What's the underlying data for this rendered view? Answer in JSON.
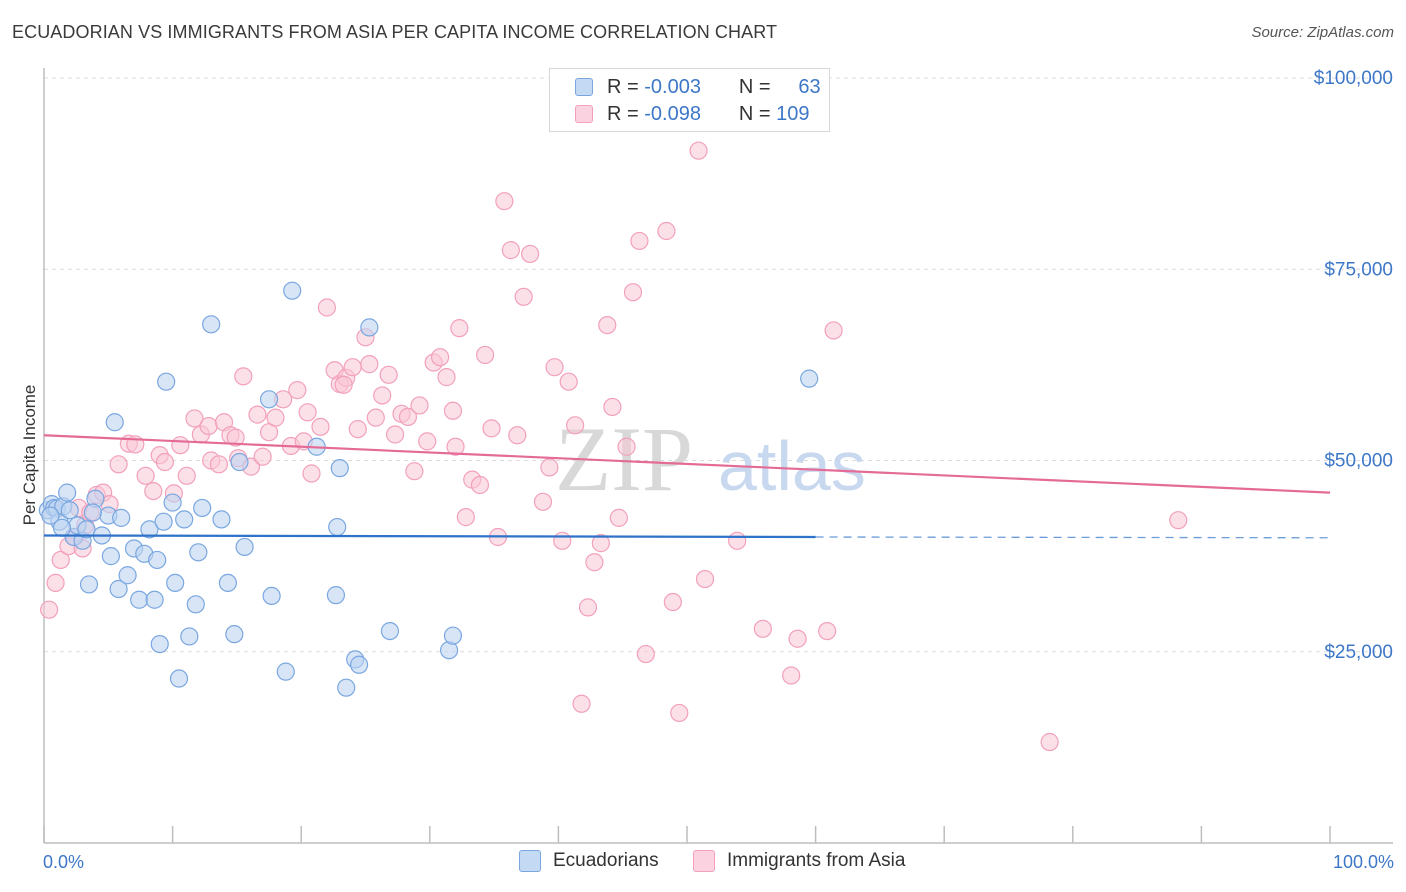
{
  "title": "ECUADORIAN VS IMMIGRANTS FROM ASIA PER CAPITA INCOME CORRELATION CHART",
  "source": "Source: ZipAtlas.com",
  "watermark": {
    "zip": "ZIP",
    "atlas": "atlas"
  },
  "legend": {
    "series1": {
      "r_label": "R =",
      "r_value": "-0.003",
      "n_label": "N =",
      "n_value": "63"
    },
    "series2": {
      "r_label": "R =",
      "r_value": "-0.098",
      "n_label": "N =",
      "n_value": "109"
    }
  },
  "chart_data": {
    "type": "scatter",
    "title": "ECUADORIAN VS IMMIGRANTS FROM ASIA PER CAPITA INCOME CORRELATION CHART",
    "xlabel": "",
    "ylabel": "Per Capita Income",
    "x_tick_labels": {
      "min": "0.0%",
      "max": "100.0%"
    },
    "y_tick_labels": [
      "$25,000",
      "$50,000",
      "$75,000",
      "$100,000"
    ],
    "y_ticks": [
      25000,
      50000,
      75000,
      100000
    ],
    "xlim": [
      0,
      100
    ],
    "ylim": [
      0,
      102000
    ],
    "colors": {
      "series1": "#7aa7e0",
      "series2": "#f2a0bb",
      "line1": "#2e72c9",
      "line2": "#e46b95",
      "axis_text": "#3d77c8"
    },
    "series": [
      {
        "name": "Ecuadorians",
        "trend": {
          "x": [
            0,
            60
          ],
          "y": [
            40200,
            40000
          ],
          "dashed_to": [
            100,
            39900
          ]
        },
        "points": [
          [
            0.3,
            43500
          ],
          [
            0.6,
            44300
          ],
          [
            0.8,
            43800
          ],
          [
            1.0,
            43700
          ],
          [
            1.2,
            42000
          ],
          [
            1.5,
            44000
          ],
          [
            1.8,
            45800
          ],
          [
            2.0,
            43500
          ],
          [
            2.3,
            40000
          ],
          [
            2.6,
            41500
          ],
          [
            3.0,
            39500
          ],
          [
            3.3,
            41000
          ],
          [
            3.5,
            33800
          ],
          [
            4.0,
            45000
          ],
          [
            4.5,
            40200
          ],
          [
            5.0,
            42800
          ],
          [
            5.2,
            37500
          ],
          [
            5.5,
            55000
          ],
          [
            5.8,
            33200
          ],
          [
            6.0,
            42500
          ],
          [
            6.5,
            35000
          ],
          [
            7.0,
            38500
          ],
          [
            7.4,
            31800
          ],
          [
            7.8,
            37800
          ],
          [
            8.2,
            41000
          ],
          [
            8.6,
            31800
          ],
          [
            8.8,
            37000
          ],
          [
            9.0,
            26000
          ],
          [
            9.3,
            42000
          ],
          [
            9.5,
            60300
          ],
          [
            10.0,
            44500
          ],
          [
            10.2,
            34000
          ],
          [
            10.5,
            21500
          ],
          [
            10.9,
            42300
          ],
          [
            11.3,
            27000
          ],
          [
            11.8,
            31200
          ],
          [
            12.0,
            38000
          ],
          [
            12.3,
            43800
          ],
          [
            13.0,
            67800
          ],
          [
            13.8,
            42300
          ],
          [
            14.3,
            34000
          ],
          [
            14.8,
            27300
          ],
          [
            15.2,
            49800
          ],
          [
            15.6,
            38700
          ],
          [
            17.5,
            58000
          ],
          [
            17.7,
            32300
          ],
          [
            18.8,
            22400
          ],
          [
            19.3,
            72200
          ],
          [
            21.2,
            51800
          ],
          [
            22.7,
            32400
          ],
          [
            22.8,
            41300
          ],
          [
            23.0,
            49000
          ],
          [
            23.5,
            20300
          ],
          [
            24.2,
            24000
          ],
          [
            24.5,
            23300
          ],
          [
            25.3,
            67400
          ],
          [
            26.9,
            27700
          ],
          [
            31.5,
            25200
          ],
          [
            31.8,
            27100
          ],
          [
            59.5,
            60700
          ],
          [
            0.5,
            42800
          ],
          [
            1.4,
            41200
          ],
          [
            3.8,
            43200
          ]
        ]
      },
      {
        "name": "Immigrants from Asia",
        "trend": {
          "x": [
            0,
            100
          ],
          "y": [
            53300,
            45800
          ]
        },
        "points": [
          [
            0.4,
            30500
          ],
          [
            0.9,
            34000
          ],
          [
            1.3,
            37000
          ],
          [
            1.9,
            38800
          ],
          [
            2.4,
            40000
          ],
          [
            2.7,
            43800
          ],
          [
            3.2,
            41500
          ],
          [
            3.6,
            43200
          ],
          [
            4.1,
            45500
          ],
          [
            4.6,
            45800
          ],
          [
            5.1,
            44300
          ],
          [
            5.8,
            49500
          ],
          [
            6.6,
            52200
          ],
          [
            7.1,
            52100
          ],
          [
            7.9,
            48000
          ],
          [
            8.5,
            46000
          ],
          [
            9.0,
            50700
          ],
          [
            9.4,
            49800
          ],
          [
            10.1,
            45700
          ],
          [
            10.6,
            52000
          ],
          [
            11.1,
            48000
          ],
          [
            11.7,
            55500
          ],
          [
            12.2,
            53400
          ],
          [
            12.8,
            54500
          ],
          [
            13.0,
            50000
          ],
          [
            13.6,
            49500
          ],
          [
            14.0,
            55000
          ],
          [
            14.5,
            53300
          ],
          [
            15.1,
            50300
          ],
          [
            15.5,
            61000
          ],
          [
            16.1,
            49200
          ],
          [
            16.6,
            56000
          ],
          [
            17.0,
            50500
          ],
          [
            17.5,
            53700
          ],
          [
            18.0,
            55600
          ],
          [
            18.6,
            58000
          ],
          [
            19.2,
            51900
          ],
          [
            19.7,
            59200
          ],
          [
            20.2,
            52500
          ],
          [
            20.8,
            48300
          ],
          [
            21.5,
            54400
          ],
          [
            22.0,
            70000
          ],
          [
            22.6,
            61800
          ],
          [
            23.0,
            60000
          ],
          [
            23.5,
            60800
          ],
          [
            24.0,
            62200
          ],
          [
            24.4,
            54100
          ],
          [
            25.0,
            66100
          ],
          [
            25.3,
            62600
          ],
          [
            25.8,
            55600
          ],
          [
            26.3,
            58500
          ],
          [
            26.8,
            61200
          ],
          [
            27.3,
            53400
          ],
          [
            27.8,
            56100
          ],
          [
            28.3,
            55700
          ],
          [
            28.8,
            48600
          ],
          [
            29.2,
            57200
          ],
          [
            29.8,
            52500
          ],
          [
            30.3,
            62800
          ],
          [
            30.8,
            63500
          ],
          [
            31.3,
            60900
          ],
          [
            31.8,
            56500
          ],
          [
            32.3,
            67300
          ],
          [
            32.8,
            42600
          ],
          [
            33.3,
            47500
          ],
          [
            33.9,
            46800
          ],
          [
            34.3,
            63800
          ],
          [
            34.8,
            54200
          ],
          [
            35.3,
            40000
          ],
          [
            35.8,
            83900
          ],
          [
            36.3,
            77500
          ],
          [
            36.8,
            53300
          ],
          [
            37.3,
            71400
          ],
          [
            37.8,
            77000
          ],
          [
            38.8,
            44600
          ],
          [
            39.3,
            49100
          ],
          [
            39.7,
            62200
          ],
          [
            40.3,
            39500
          ],
          [
            40.8,
            60300
          ],
          [
            41.3,
            54600
          ],
          [
            41.8,
            18200
          ],
          [
            42.3,
            30800
          ],
          [
            42.8,
            36700
          ],
          [
            43.3,
            39200
          ],
          [
            43.8,
            67700
          ],
          [
            44.2,
            57000
          ],
          [
            44.7,
            42500
          ],
          [
            45.3,
            51800
          ],
          [
            45.8,
            72000
          ],
          [
            46.3,
            78700
          ],
          [
            46.8,
            24700
          ],
          [
            48.4,
            80000
          ],
          [
            48.9,
            31500
          ],
          [
            49.4,
            17000
          ],
          [
            50.9,
            90500
          ],
          [
            51.4,
            34500
          ],
          [
            53.9,
            39500
          ],
          [
            55.9,
            28000
          ],
          [
            58.1,
            21900
          ],
          [
            58.6,
            26700
          ],
          [
            60.9,
            27700
          ],
          [
            61.4,
            67000
          ],
          [
            78.2,
            13200
          ],
          [
            88.2,
            42200
          ],
          [
            3.0,
            38500
          ],
          [
            14.9,
            53000
          ],
          [
            20.5,
            56300
          ],
          [
            23.3,
            59900
          ],
          [
            32.0,
            51800
          ]
        ]
      }
    ]
  },
  "bottom_legend": {
    "item1": "Ecuadorians",
    "item2": "Immigrants from Asia"
  }
}
